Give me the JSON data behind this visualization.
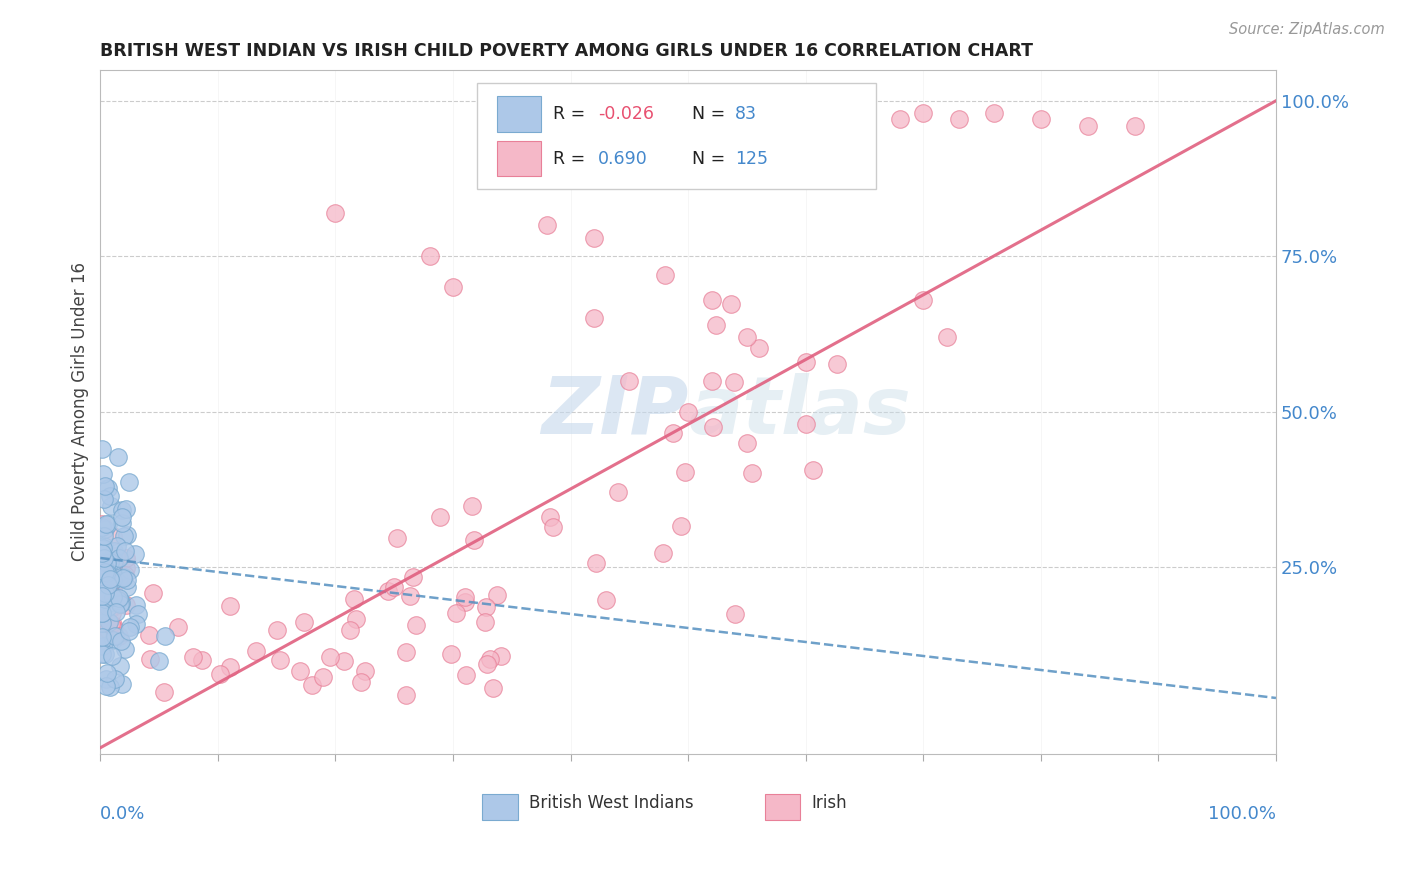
{
  "title": "BRITISH WEST INDIAN VS IRISH CHILD POVERTY AMONG GIRLS UNDER 16 CORRELATION CHART",
  "source": "Source: ZipAtlas.com",
  "ylabel": "Child Poverty Among Girls Under 16",
  "ytick_labels": [
    "25.0%",
    "50.0%",
    "75.0%",
    "100.0%"
  ],
  "ytick_values": [
    0.25,
    0.5,
    0.75,
    1.0
  ],
  "legend_r_blue": "-0.026",
  "legend_n_blue": "83",
  "legend_r_pink": "0.690",
  "legend_n_pink": "125",
  "blue_fill": "#adc8e8",
  "blue_edge": "#7aaad0",
  "pink_fill": "#f5b8c8",
  "pink_edge": "#e88098",
  "blue_trend_color": "#5590c0",
  "pink_trend_color": "#e06080",
  "watermark_color": "#c5d8ec",
  "title_color": "#222222",
  "source_color": "#999999",
  "axis_label_color": "#4488cc",
  "r_blue_color": "#e85070",
  "r_pink_color": "#4488cc",
  "n_color": "#4488cc",
  "label_color": "#333333",
  "grid_color": "#cccccc",
  "xlim": [
    0.0,
    1.0
  ],
  "ylim": [
    -0.05,
    1.05
  ],
  "blue_trend_x0": 0.0,
  "blue_trend_y0": 0.265,
  "blue_trend_x1": 1.0,
  "blue_trend_y1": 0.04,
  "pink_trend_x0": 0.0,
  "pink_trend_y0": -0.04,
  "pink_trend_x1": 1.0,
  "pink_trend_y1": 1.0
}
